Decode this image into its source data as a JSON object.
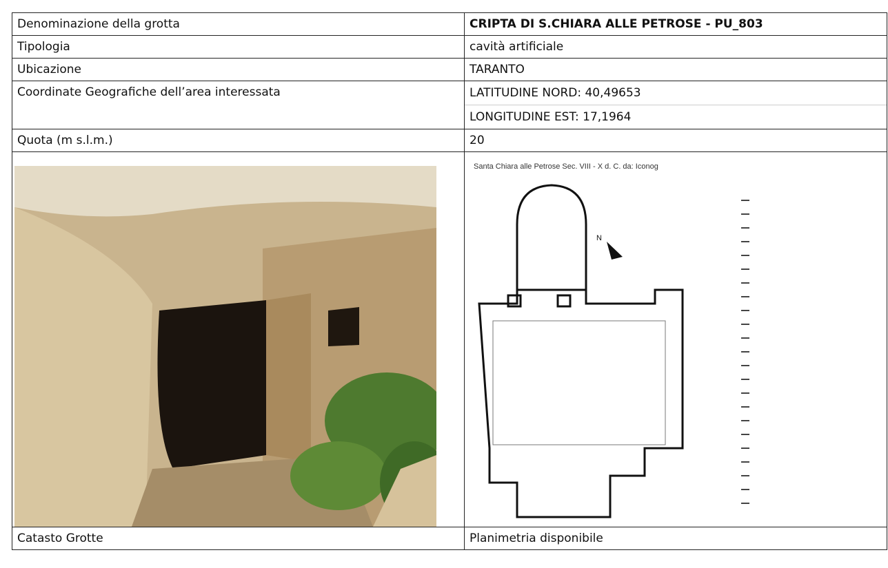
{
  "table": {
    "rows": [
      [
        "Denominazione della grotta",
        "CRIPTA DI S.CHIARA ALLE PETROSE - PU_803"
      ],
      [
        "Tipologia",
        "cavità artificiale"
      ],
      [
        "Ubicazione",
        "TARANTO"
      ],
      [
        "Coordinate Geografiche dell’area interessata",
        [
          "LATITUDINE NORD: 40,49653",
          "LONGITUDINE EST: 17,1964"
        ]
      ],
      [
        "Quota (m s.l.m.)",
        "20"
      ]
    ],
    "plan_caption": "Santa Chiara alle Petrose Sec. VIII - X d. C.     da: Iconog",
    "footer": [
      "Catasto Grotte",
      "Planimetria disponibile"
    ]
  }
}
